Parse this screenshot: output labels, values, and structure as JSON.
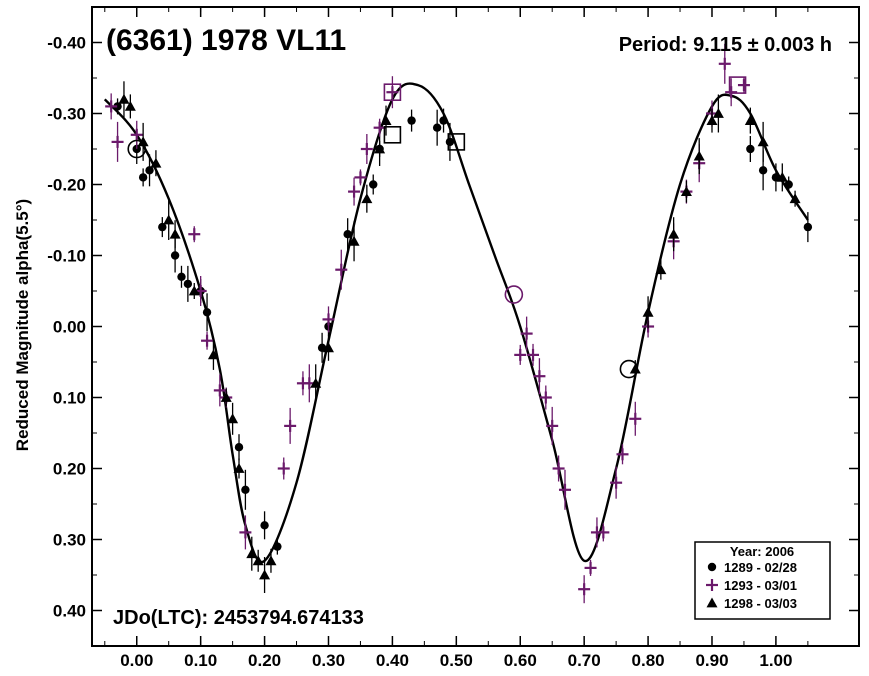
{
  "chart_data": {
    "type": "scatter",
    "title": "(6361) 1978 VL11",
    "period_label": "Period: 9.115 ± 0.003 h",
    "epoch_label": "JDo(LTC): 2453794.674133",
    "ylabel": "Reduced Magnitude alpha(5.5°)",
    "xlabel": "",
    "xlim": [
      -0.07,
      1.13
    ],
    "ylim": [
      0.45,
      -0.45
    ],
    "y_inverted": true,
    "x_ticks": [
      "0.00",
      "0.10",
      "0.20",
      "0.30",
      "0.40",
      "0.50",
      "0.60",
      "0.70",
      "0.80",
      "0.90",
      "1.00"
    ],
    "x_tick_values": [
      0,
      0.1,
      0.2,
      0.3,
      0.4,
      0.5,
      0.6,
      0.7,
      0.8,
      0.9,
      1.0
    ],
    "y_ticks": [
      "-0.40",
      "-0.30",
      "-0.20",
      "-0.10",
      "0.00",
      "0.10",
      "0.20",
      "0.30",
      "0.40"
    ],
    "y_tick_values": [
      -0.4,
      -0.3,
      -0.2,
      -0.1,
      0,
      0.1,
      0.2,
      0.3,
      0.4
    ],
    "legend": {
      "title": "Year: 2006",
      "placement": "bottom-right",
      "entries": [
        {
          "marker": "circle",
          "label": "1289 - 02/28"
        },
        {
          "marker": "plus",
          "label": "1293 - 03/01"
        },
        {
          "marker": "triangle",
          "label": "1298 - 03/03"
        }
      ]
    },
    "fit_curve": {
      "x": [
        -0.05,
        0.0,
        0.05,
        0.1,
        0.13,
        0.15,
        0.17,
        0.2,
        0.25,
        0.3,
        0.35,
        0.4,
        0.44,
        0.48,
        0.52,
        0.56,
        0.6,
        0.65,
        0.7,
        0.75,
        0.8,
        0.85,
        0.9,
        0.93,
        0.96,
        1.0,
        1.05
      ],
      "y": [
        -0.32,
        -0.27,
        -0.18,
        -0.05,
        0.06,
        0.18,
        0.28,
        0.33,
        0.22,
        0.02,
        -0.18,
        -0.32,
        -0.34,
        -0.3,
        -0.2,
        -0.1,
        0.0,
        0.16,
        0.33,
        0.2,
        -0.02,
        -0.2,
        -0.31,
        -0.325,
        -0.3,
        -0.22,
        -0.15
      ]
    },
    "series": [
      {
        "name": "1289 - 02/28",
        "marker": "circle",
        "color": "#000000",
        "x": [
          -0.03,
          0.0,
          0.01,
          0.02,
          0.04,
          0.06,
          0.07,
          0.08,
          0.1,
          0.11,
          0.16,
          0.17,
          0.2,
          0.22,
          0.29,
          0.3,
          0.33,
          0.37,
          0.38,
          0.43,
          0.47,
          0.48,
          0.49,
          0.96,
          0.98,
          1.0,
          1.02,
          1.05
        ],
        "y": [
          -0.31,
          -0.25,
          -0.21,
          -0.22,
          -0.14,
          -0.1,
          -0.07,
          -0.06,
          -0.05,
          -0.02,
          0.17,
          0.23,
          0.28,
          0.31,
          0.03,
          0.0,
          -0.13,
          -0.2,
          -0.25,
          -0.29,
          -0.28,
          -0.29,
          -0.26,
          -0.25,
          -0.22,
          -0.21,
          -0.2,
          -0.14
        ]
      },
      {
        "name": "1293 - 03/01",
        "marker": "plus",
        "color": "#6B1A6B",
        "x": [
          -0.04,
          -0.03,
          0.0,
          0.09,
          0.1,
          0.11,
          0.13,
          0.14,
          0.17,
          0.23,
          0.24,
          0.26,
          0.27,
          0.3,
          0.32,
          0.34,
          0.35,
          0.36,
          0.38,
          0.4,
          0.6,
          0.61,
          0.62,
          0.63,
          0.64,
          0.65,
          0.66,
          0.67,
          0.7,
          0.71,
          0.72,
          0.73,
          0.75,
          0.76,
          0.78,
          0.8,
          0.84,
          0.86,
          0.88,
          0.9,
          0.92,
          0.93,
          0.95
        ],
        "y": [
          -0.31,
          -0.26,
          -0.27,
          -0.13,
          -0.05,
          0.02,
          0.09,
          0.1,
          0.29,
          0.2,
          0.14,
          0.08,
          0.08,
          -0.01,
          -0.08,
          -0.19,
          -0.21,
          -0.25,
          -0.28,
          -0.33,
          0.04,
          0.01,
          0.04,
          0.07,
          0.1,
          0.14,
          0.2,
          0.23,
          0.37,
          0.34,
          0.29,
          0.29,
          0.22,
          0.18,
          0.13,
          0.0,
          -0.12,
          -0.19,
          -0.23,
          -0.3,
          -0.37,
          -0.33,
          -0.34
        ]
      },
      {
        "name": "1298 - 03/03",
        "marker": "triangle",
        "color": "#000000",
        "x": [
          -0.02,
          -0.01,
          0.01,
          0.03,
          0.05,
          0.06,
          0.09,
          0.12,
          0.14,
          0.15,
          0.16,
          0.18,
          0.19,
          0.2,
          0.21,
          0.28,
          0.3,
          0.34,
          0.36,
          0.38,
          0.39,
          0.78,
          0.8,
          0.82,
          0.84,
          0.86,
          0.88,
          0.9,
          0.91,
          0.96,
          0.98,
          1.01,
          1.03
        ],
        "y": [
          -0.32,
          -0.31,
          -0.26,
          -0.23,
          -0.15,
          -0.13,
          -0.05,
          0.04,
          0.1,
          0.13,
          0.2,
          0.32,
          0.33,
          0.35,
          0.33,
          0.08,
          0.03,
          -0.12,
          -0.18,
          -0.25,
          -0.29,
          0.06,
          -0.02,
          -0.08,
          -0.13,
          -0.19,
          -0.24,
          -0.29,
          -0.3,
          -0.29,
          -0.26,
          -0.21,
          -0.18
        ]
      }
    ],
    "reference_markers": [
      {
        "shape": "circle",
        "x": 0.0,
        "y": -0.25,
        "color": "#000000"
      },
      {
        "shape": "square",
        "x": 0.4,
        "y": -0.33,
        "color": "#6B1A6B"
      },
      {
        "shape": "square",
        "x": 0.4,
        "y": -0.27,
        "color": "#000000"
      },
      {
        "shape": "square",
        "x": 0.5,
        "y": -0.26,
        "color": "#000000"
      },
      {
        "shape": "circle",
        "x": 0.59,
        "y": -0.045,
        "color": "#6B1A6B"
      },
      {
        "shape": "circle",
        "x": 0.77,
        "y": 0.06,
        "color": "#000000"
      },
      {
        "shape": "square",
        "x": 0.94,
        "y": -0.34,
        "color": "#6B1A6B"
      }
    ]
  }
}
